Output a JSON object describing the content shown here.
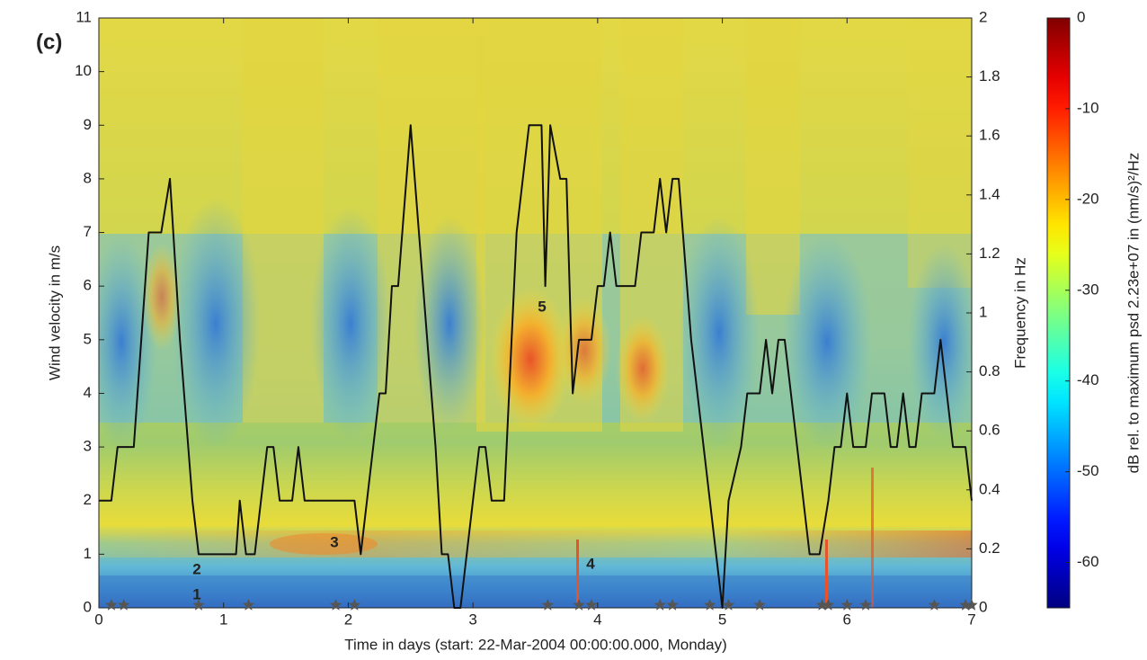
{
  "chart_data": {
    "type": "line",
    "panel_label": "(c)",
    "x_label": "Time in days (start: 22-Mar-2004 00:00:00.000, Monday)",
    "y_label": "Wind velocity in m/s",
    "y2_label": "Frequency in Hz",
    "colorbar_label": "dB rel. to maximum psd 2.23e+07 in (nm/s)²/Hz",
    "colormap": "jet",
    "clim": [
      -65,
      0
    ],
    "cticks": [
      0,
      -10,
      -20,
      -30,
      -40,
      -50,
      -60
    ],
    "xlim": [
      0,
      7
    ],
    "xticks": [
      0,
      1,
      2,
      3,
      4,
      5,
      6,
      7
    ],
    "ylim": [
      0,
      11
    ],
    "yticks": [
      0,
      1,
      2,
      3,
      4,
      5,
      6,
      7,
      8,
      9,
      10,
      11
    ],
    "y2lim": [
      0,
      2
    ],
    "y2ticks": [
      0,
      0.2,
      0.4,
      0.6,
      0.8,
      1,
      1.2,
      1.4,
      1.6,
      1.8,
      2
    ],
    "annotations": [
      "1",
      "2",
      "3",
      "4",
      "5"
    ],
    "series": [
      {
        "name": "Wind velocity",
        "color": "#111111",
        "x": [
          0,
          0.1,
          0.15,
          0.28,
          0.4,
          0.5,
          0.57,
          0.65,
          0.75,
          0.8,
          1.1,
          1.13,
          1.18,
          1.25,
          1.35,
          1.4,
          1.45,
          1.55,
          1.6,
          1.65,
          2.05,
          2.1,
          2.15,
          2.2,
          2.25,
          2.3,
          2.35,
          2.4,
          2.5,
          2.6,
          2.7,
          2.75,
          2.8,
          2.85,
          2.9,
          3.0,
          3.05,
          3.1,
          3.15,
          3.25,
          3.35,
          3.45,
          3.55,
          3.58,
          3.62,
          3.7,
          3.75,
          3.8,
          3.85,
          3.95,
          4.0,
          4.05,
          4.1,
          4.15,
          4.3,
          4.35,
          4.45,
          4.5,
          4.55,
          4.6,
          4.65,
          4.75,
          4.85,
          4.95,
          5.0,
          5.05,
          5.15,
          5.2,
          5.3,
          5.35,
          5.4,
          5.45,
          5.5,
          5.6,
          5.7,
          5.78,
          5.85,
          5.9,
          5.95,
          6.0,
          6.05,
          6.15,
          6.2,
          6.3,
          6.35,
          6.4,
          6.45,
          6.5,
          6.55,
          6.6,
          6.7,
          6.75,
          6.8,
          6.85,
          6.95,
          7.0
        ],
        "values": [
          2,
          2,
          3,
          3,
          7,
          7,
          8,
          5,
          2,
          1,
          1,
          2,
          1,
          1,
          3,
          3,
          2,
          2,
          3,
          2,
          2,
          1,
          2,
          3,
          4,
          4,
          6,
          6,
          9,
          6,
          3,
          1,
          1,
          0,
          0,
          2,
          3,
          3,
          2,
          2,
          7,
          9,
          9,
          6,
          9,
          8,
          8,
          4,
          5,
          5,
          6,
          6,
          7,
          6,
          6,
          7,
          7,
          8,
          7,
          8,
          8,
          5,
          3,
          1,
          0,
          2,
          3,
          4,
          4,
          5,
          4,
          5,
          5,
          3,
          1,
          1,
          2,
          3,
          3,
          4,
          3,
          3,
          4,
          4,
          3,
          3,
          4,
          3,
          3,
          4,
          4,
          5,
          4,
          3,
          3,
          2
        ]
      }
    ],
    "markers": {
      "x": [
        0.1,
        0.2,
        0.8,
        1.2,
        1.9,
        2.05,
        3.6,
        3.85,
        3.95,
        4.5,
        4.6,
        4.9,
        5.05,
        5.3,
        5.8,
        5.85,
        6.0,
        6.15,
        6.7,
        6.95,
        7.0
      ],
      "color": "#555555"
    }
  }
}
